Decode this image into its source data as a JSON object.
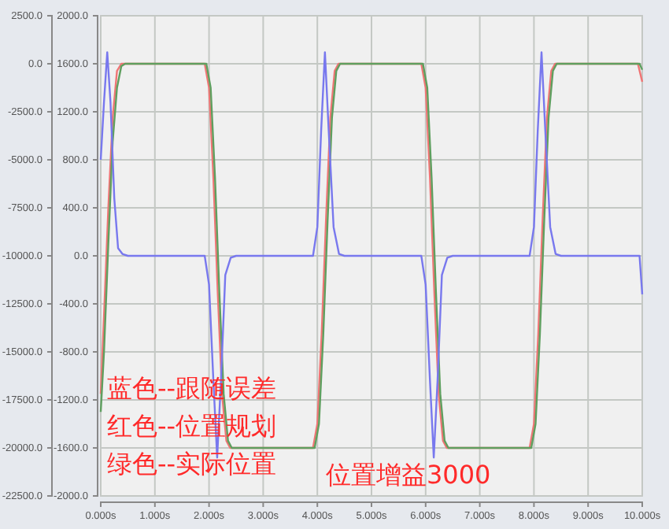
{
  "chart_data": {
    "type": "line",
    "xlim": [
      0,
      10
    ],
    "xticks": [
      {
        "value": 0,
        "label": "0.000s"
      },
      {
        "value": 1,
        "label": "1.000s"
      },
      {
        "value": 2,
        "label": "2.000s"
      },
      {
        "value": 3,
        "label": "3.000s"
      },
      {
        "value": 4,
        "label": "4.000s"
      },
      {
        "value": 5,
        "label": "5.000s"
      },
      {
        "value": 6,
        "label": "6.000s"
      },
      {
        "value": 7,
        "label": "7.000s"
      },
      {
        "value": 8,
        "label": "8.000s"
      },
      {
        "value": 9,
        "label": "9.000s"
      },
      {
        "value": 10,
        "label": "10.000s"
      }
    ],
    "ylim": [
      -2000,
      2000
    ],
    "yticks": [
      {
        "value": 2000,
        "label": "2000.0"
      },
      {
        "value": 1600,
        "label": "1600.0"
      },
      {
        "value": 1200,
        "label": "1200.0"
      },
      {
        "value": 800,
        "label": "800.0"
      },
      {
        "value": 400,
        "label": "400.0"
      },
      {
        "value": 0,
        "label": "0.0"
      },
      {
        "value": -400,
        "label": "-400.0"
      },
      {
        "value": -800,
        "label": "-800.0"
      },
      {
        "value": -1200,
        "label": "-1200.0"
      },
      {
        "value": -1600,
        "label": "-1600.0"
      },
      {
        "value": -2000,
        "label": "-2000.0"
      }
    ],
    "y2lim": [
      -22500,
      2500
    ],
    "y2ticks": [
      {
        "value": 2500,
        "label": "2500.0"
      },
      {
        "value": 0,
        "label": "0.0"
      },
      {
        "value": -2500,
        "label": "-2500.0"
      },
      {
        "value": -5000,
        "label": "-5000.0"
      },
      {
        "value": -7500,
        "label": "-7500.0"
      },
      {
        "value": -10000,
        "label": "-10000.0"
      },
      {
        "value": -12500,
        "label": "-12500.0"
      },
      {
        "value": -15000,
        "label": "-15000.0"
      },
      {
        "value": -17500,
        "label": "-17500.0"
      },
      {
        "value": -20000,
        "label": "-20000.0"
      },
      {
        "value": -22500,
        "label": "-22500.0"
      }
    ],
    "grid": true,
    "line_style": "solid",
    "annotations": [
      "蓝色--跟随误差",
      "红色--位置规划",
      "绿色--实际位置",
      "位置增益3000"
    ],
    "series": [
      {
        "color": "#f07575",
        "x": [
          0,
          0.06,
          0.14,
          0.22,
          0.3,
          0.38,
          1.92,
          2.0,
          2.08,
          2.16,
          2.24,
          2.32,
          2.39,
          3.92,
          4.0,
          4.08,
          4.16,
          4.24,
          4.32,
          4.39,
          5.92,
          6.0,
          6.08,
          6.16,
          6.24,
          6.32,
          6.39,
          7.92,
          8.0,
          8.08,
          8.16,
          8.24,
          8.32,
          8.39,
          9.92,
          10
        ],
        "values": [
          -1150,
          -500,
          400,
          1150,
          1540,
          1600,
          1600,
          1400,
          650,
          -300,
          -1150,
          -1540,
          -1600,
          -1600,
          -1400,
          -650,
          300,
          1150,
          1540,
          1600,
          1600,
          1400,
          650,
          -300,
          -1150,
          -1540,
          -1600,
          -1600,
          -1400,
          -650,
          300,
          1150,
          1540,
          1600,
          1600,
          1450
        ]
      },
      {
        "color": "#5f9f5f",
        "x": [
          0,
          0.06,
          0.14,
          0.22,
          0.3,
          0.38,
          0.45,
          1.95,
          2.03,
          2.11,
          2.19,
          2.27,
          2.35,
          2.42,
          3.95,
          4.03,
          4.11,
          4.19,
          4.27,
          4.35,
          4.42,
          5.95,
          6.03,
          6.11,
          6.19,
          6.27,
          6.35,
          6.42,
          7.95,
          8.03,
          8.11,
          8.19,
          8.27,
          8.35,
          8.42,
          9.95,
          10
        ],
        "values": [
          -1300,
          -800,
          100,
          950,
          1400,
          1580,
          1600,
          1600,
          1400,
          650,
          -300,
          -1150,
          -1540,
          -1600,
          -1600,
          -1400,
          -650,
          300,
          1150,
          1540,
          1600,
          1600,
          1400,
          650,
          -300,
          -1150,
          -1540,
          -1600,
          -1600,
          -1400,
          -650,
          300,
          1150,
          1540,
          1600,
          1600,
          1550
        ]
      },
      {
        "color": "#7878ee",
        "axis": "y2",
        "x": [
          0,
          0.06,
          0.12,
          0.18,
          0.25,
          0.32,
          0.4,
          0.5,
          1.92,
          2.0,
          2.08,
          2.15,
          2.22,
          2.3,
          2.4,
          2.5,
          3.92,
          4.0,
          4.07,
          4.14,
          4.21,
          4.3,
          4.4,
          4.5,
          5.92,
          6.0,
          6.08,
          6.15,
          6.22,
          6.3,
          6.4,
          6.5,
          7.92,
          8.0,
          8.07,
          8.14,
          8.21,
          8.3,
          8.4,
          8.5,
          9.95,
          10
        ],
        "values": [
          -5000,
          -2000,
          600,
          -2000,
          -7000,
          -9600,
          -9900,
          -10000,
          -10000,
          -11500,
          -16500,
          -20500,
          -16500,
          -11000,
          -10100,
          -10000,
          -10000,
          -8500,
          -3500,
          600,
          -3500,
          -8500,
          -9900,
          -10000,
          -10000,
          -11500,
          -16500,
          -20500,
          -16500,
          -11000,
          -10100,
          -10000,
          -10000,
          -8500,
          -3500,
          600,
          -3500,
          -8500,
          -9900,
          -10000,
          -10000,
          -12000
        ]
      }
    ]
  }
}
